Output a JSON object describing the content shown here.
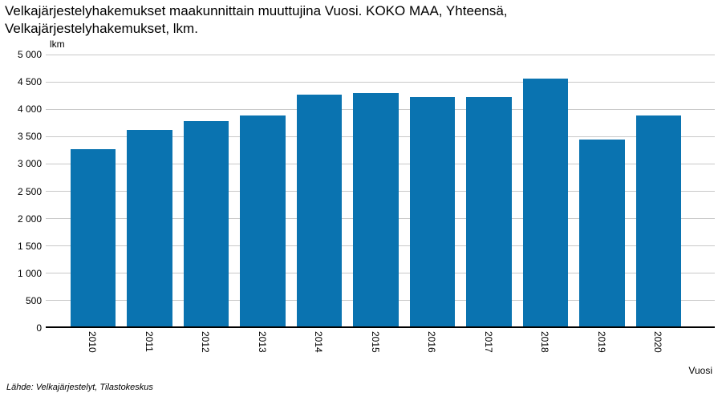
{
  "title": {
    "lines": [
      "Velkajärjestelyhakemukset maakunnittain muuttujina Vuosi. KOKO MAA, Yhteensä,",
      "Velkajärjestelyhakemukset, lkm."
    ]
  },
  "chart_data": {
    "type": "bar",
    "title": "Velkajärjestelyhakemukset maakunnittain muuttujina Vuosi. KOKO MAA, Yhteensä, Velkajärjestelyhakemukset, lkm.",
    "categories": [
      "2010",
      "2011",
      "2012",
      "2013",
      "2014",
      "2015",
      "2016",
      "2017",
      "2018",
      "2019",
      "2020"
    ],
    "values": [
      3270,
      3620,
      3785,
      3890,
      4265,
      4295,
      4230,
      4225,
      4560,
      3450,
      3880
    ],
    "xlabel": "Vuosi",
    "ylabel": "lkm",
    "ylim": [
      0,
      5000
    ],
    "ytick_step": 500,
    "ytick_labels": [
      "0",
      "500",
      "1 000",
      "1 500",
      "2 000",
      "2 500",
      "3 000",
      "3 500",
      "4 000",
      "4 500",
      "5 000"
    ],
    "grid": true,
    "legend": "none"
  },
  "footer": {
    "source": "Lähde: Velkajärjestelyt, Tilastokeskus"
  },
  "colors": {
    "bar": "#0A73B0",
    "grid": "#C9C9C9",
    "axis": "#000000",
    "text": "#000000",
    "background": "#FFFFFF"
  }
}
